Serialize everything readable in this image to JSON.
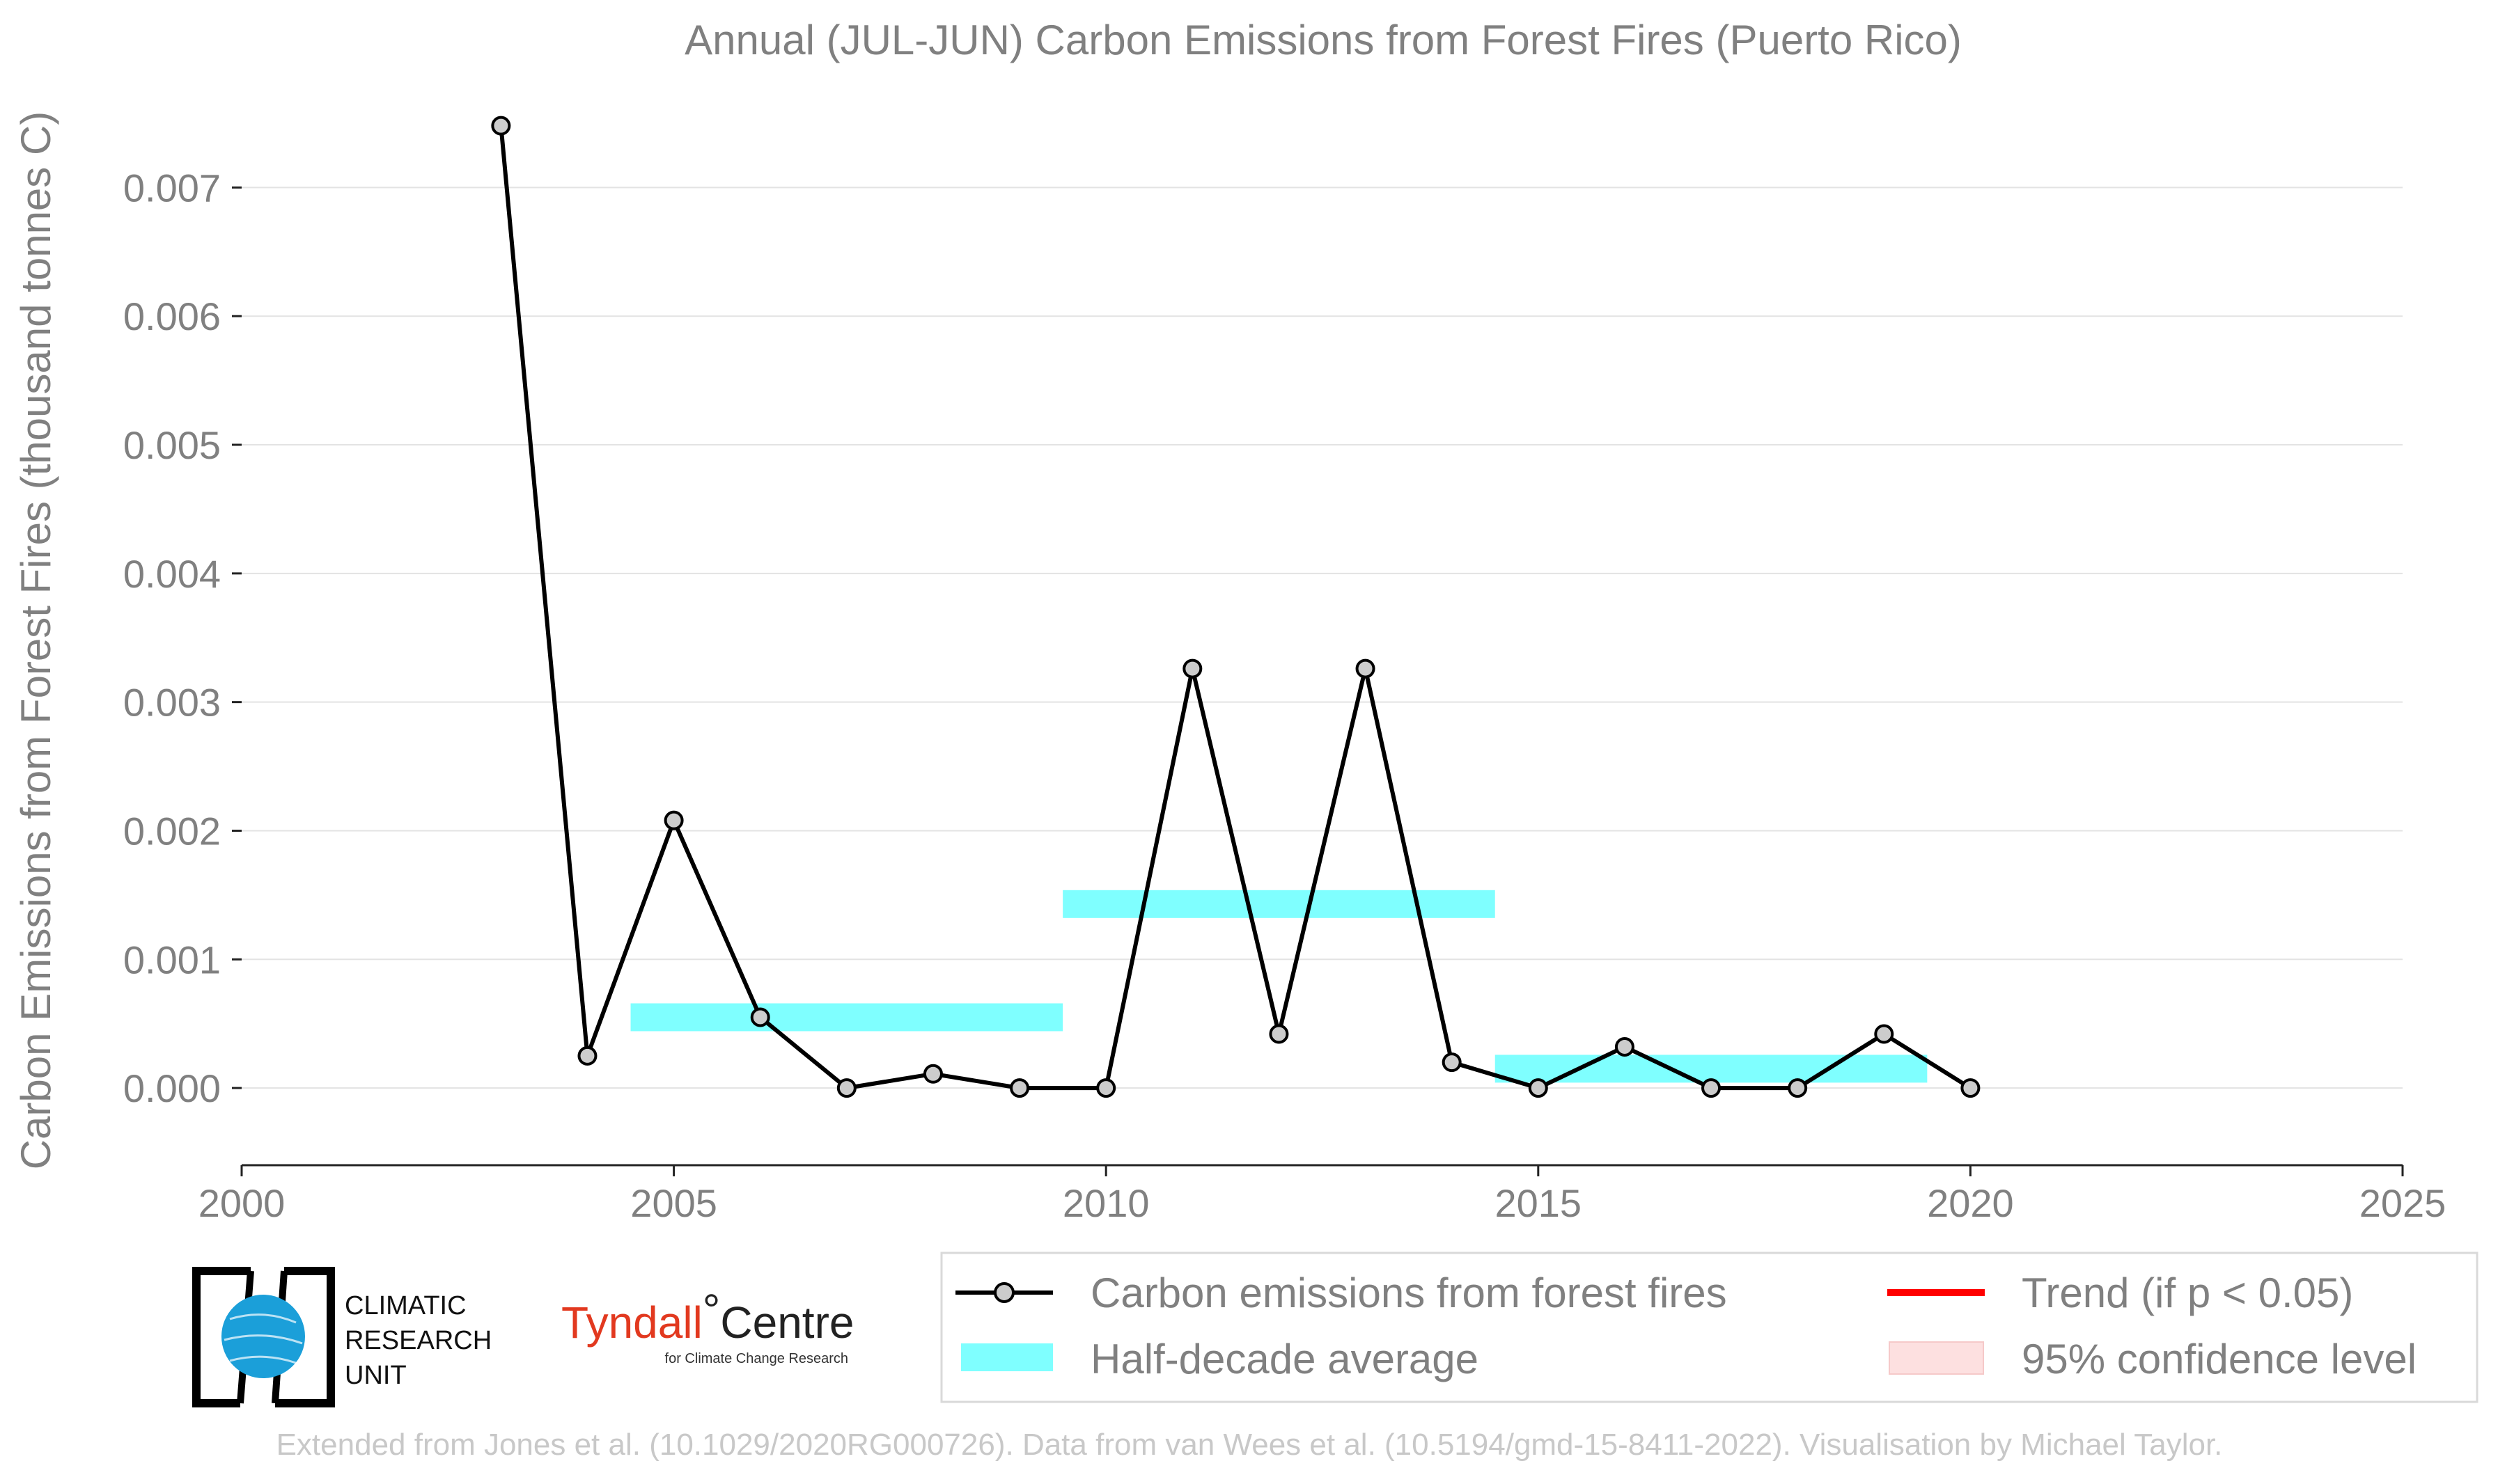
{
  "chart_data": {
    "type": "line",
    "title": "Annual (JUL-JUN) Carbon Emissions from Forest Fires (Puerto Rico)",
    "ylabel": "Carbon Emissions from Forest Fires (thousand tonnes C)",
    "xlabel": "",
    "xlim": [
      2000,
      2025
    ],
    "ylim": [
      -0.0006,
      0.0077
    ],
    "x_ticks": [
      2000,
      2005,
      2010,
      2015,
      2020,
      2025
    ],
    "y_ticks": [
      0.0,
      0.001,
      0.002,
      0.003,
      0.004,
      0.005,
      0.006,
      0.007
    ],
    "y_tick_labels": [
      "0.000",
      "0.001",
      "0.002",
      "0.003",
      "0.004",
      "0.005",
      "0.006",
      "0.007"
    ],
    "grid": "horizontal",
    "series": [
      {
        "name": "Carbon emissions from forest fires",
        "color": "#000000",
        "marker_fill": "#cccccc",
        "x": [
          2003,
          2004,
          2005,
          2006,
          2007,
          2008,
          2009,
          2010,
          2011,
          2012,
          2013,
          2014,
          2015,
          2016,
          2017,
          2018,
          2019,
          2020
        ],
        "y": [
          0.00748,
          0.00025,
          0.00208,
          0.00055,
          0.0,
          0.00011,
          0.0,
          0.0,
          0.00326,
          0.00042,
          0.00326,
          0.0002,
          0.0,
          0.00032,
          0.0,
          0.0,
          0.00042,
          0.0
        ]
      }
    ],
    "half_decade_average": {
      "name": "Half-decade average",
      "color": "#7fffff",
      "segments": [
        {
          "x0": 2004.5,
          "x1": 2009.5,
          "y": 0.00055
        },
        {
          "x0": 2009.5,
          "x1": 2014.5,
          "y": 0.00143
        },
        {
          "x0": 2014.5,
          "x1": 2019.5,
          "y": 0.00015
        }
      ]
    },
    "legend": {
      "placement": "bottom-right",
      "entries": [
        {
          "label": "Carbon emissions from forest fires",
          "kind": "line-marker",
          "color": "#000000"
        },
        {
          "label": "Trend (if p < 0.05)",
          "kind": "line",
          "color": "#ff0000"
        },
        {
          "label": "Half-decade average",
          "kind": "band",
          "color": "#7fffff"
        },
        {
          "label": "95% confidence level",
          "kind": "patch",
          "color": "#fde0e0"
        }
      ]
    }
  },
  "logos": {
    "cru_lines": [
      "CLIMATIC",
      "RESEARCH",
      "UNIT"
    ],
    "tyndall_red": "Tyndall",
    "tyndall_black": "Centre",
    "tyndall_sub": "for Climate Change Research"
  },
  "credit": "Extended from Jones et al. (10.1029/2020RG000726). Data from van Wees et al. (10.5194/gmd-15-8411-2022). Visualisation by Michael Taylor."
}
